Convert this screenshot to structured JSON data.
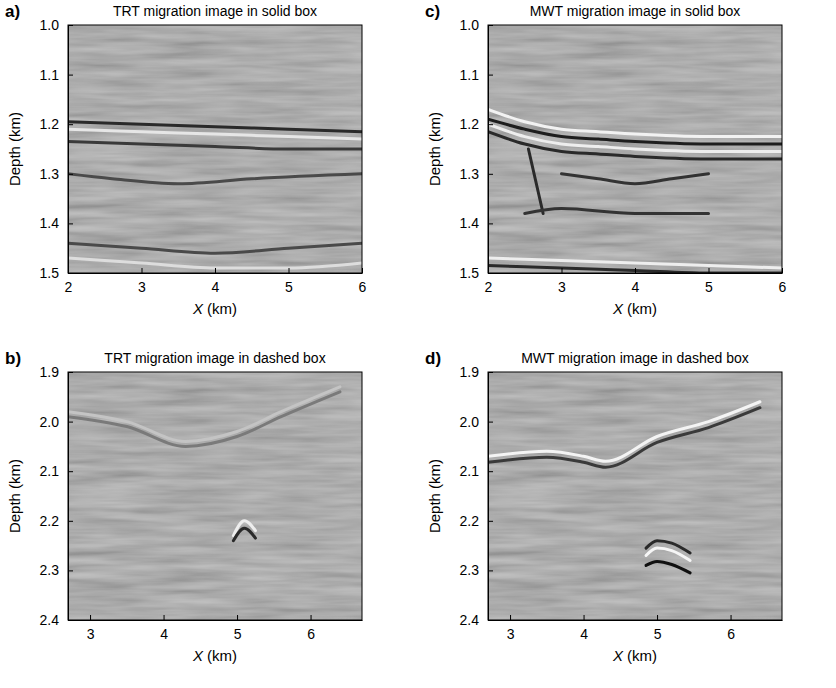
{
  "chart_data": [
    {
      "type": "line",
      "panel": "a)",
      "title": "TRT migration image in solid box",
      "x_label": "X (km)",
      "y_label": "Depth (km)",
      "xlim": [
        2,
        6
      ],
      "xticks": [
        2,
        3,
        4,
        5,
        6
      ],
      "ylim": [
        1.0,
        1.5
      ],
      "yticks": [
        {
          "value": 1.0,
          "label": "1.0"
        },
        1.1,
        1.2,
        1.3,
        1.4,
        1.5
      ],
      "grid": false,
      "series": [
        {
          "color": "#2a2a2a",
          "x": [
            2,
            3,
            4,
            5,
            6
          ],
          "values": [
            1.195,
            1.2,
            1.205,
            1.21,
            1.215
          ]
        },
        {
          "color": "#e6e6e6",
          "x": [
            2,
            3,
            4,
            5,
            6
          ],
          "values": [
            1.21,
            1.215,
            1.22,
            1.225,
            1.23
          ]
        },
        {
          "color": "#3a3a3a",
          "x": [
            2,
            3,
            4,
            5,
            6
          ],
          "values": [
            1.235,
            1.24,
            1.245,
            1.25,
            1.25
          ]
        },
        {
          "color": "#4a4a4a",
          "x": [
            2,
            2.6,
            3.5,
            4.5,
            6
          ],
          "values": [
            1.3,
            1.31,
            1.32,
            1.31,
            1.3
          ]
        },
        {
          "color": "#4a4a4a",
          "x": [
            2,
            3,
            4,
            5,
            6
          ],
          "values": [
            1.44,
            1.45,
            1.46,
            1.45,
            1.44
          ]
        },
        {
          "color": "#dddddd",
          "x": [
            2,
            3,
            4,
            5,
            6
          ],
          "values": [
            1.47,
            1.48,
            1.49,
            1.49,
            1.48
          ]
        }
      ]
    },
    {
      "type": "line",
      "panel": "b)",
      "title": "TRT migration image in dashed box",
      "x_label": "X (km)",
      "y_label": "Depth (km)",
      "xlim": [
        2.7,
        6.7
      ],
      "xticks": [
        3,
        4,
        5,
        6
      ],
      "ylim": [
        1.9,
        2.4
      ],
      "yticks": [
        1.9,
        {
          "value": 2.0,
          "label": "2.0"
        },
        2.1,
        2.2,
        2.3,
        2.4
      ],
      "grid": false,
      "series": [
        {
          "color": "#c4c4c4",
          "x": [
            2.7,
            3.5,
            4.3,
            5.0,
            5.6,
            6.4
          ],
          "values": [
            1.98,
            2.0,
            2.04,
            2.02,
            1.98,
            1.93
          ]
        },
        {
          "color": "#7a7a7a",
          "x": [
            2.7,
            3.5,
            4.3,
            5.0,
            5.6,
            6.4
          ],
          "values": [
            1.99,
            2.01,
            2.05,
            2.03,
            1.99,
            1.94
          ]
        },
        {
          "color": "#eeeeee",
          "x": [
            4.95,
            5.1,
            5.25
          ],
          "values": [
            2.23,
            2.2,
            2.22
          ]
        },
        {
          "color": "#2a2a2a",
          "x": [
            4.95,
            5.1,
            5.25
          ],
          "values": [
            2.24,
            2.215,
            2.235
          ]
        }
      ]
    },
    {
      "type": "line",
      "panel": "c)",
      "title": "MWT migration image in solid box",
      "x_label": "X (km)",
      "y_label": "Depth (km)",
      "xlim": [
        2,
        6
      ],
      "xticks": [
        2,
        3,
        4,
        5,
        6
      ],
      "ylim": [
        1.0,
        1.5
      ],
      "yticks": [
        {
          "value": 1.0,
          "label": "1.0"
        },
        1.1,
        1.2,
        1.3,
        1.4,
        1.5
      ],
      "grid": false,
      "series": [
        {
          "color": "#f2f2f2",
          "x": [
            2,
            2.5,
            3,
            3.5,
            4,
            5,
            6
          ],
          "values": [
            1.17,
            1.195,
            1.21,
            1.215,
            1.22,
            1.225,
            1.225
          ]
        },
        {
          "color": "#1e1e1e",
          "x": [
            2,
            2.5,
            3,
            3.5,
            4,
            5,
            6
          ],
          "values": [
            1.19,
            1.21,
            1.225,
            1.23,
            1.235,
            1.24,
            1.24
          ]
        },
        {
          "color": "#eeeeee",
          "x": [
            2,
            2.5,
            3,
            3.5,
            4,
            5,
            6
          ],
          "values": [
            1.2,
            1.225,
            1.24,
            1.245,
            1.25,
            1.255,
            1.255
          ]
        },
        {
          "color": "#2a2a2a",
          "x": [
            2,
            2.5,
            3,
            3.5,
            4,
            5,
            6
          ],
          "values": [
            1.215,
            1.24,
            1.255,
            1.26,
            1.265,
            1.27,
            1.27
          ]
        },
        {
          "color": "#2a2a2a",
          "x": [
            2.55,
            2.75
          ],
          "values": [
            1.25,
            1.38
          ]
        },
        {
          "color": "#333333",
          "x": [
            3,
            3.5,
            4,
            4.5,
            5
          ],
          "values": [
            1.3,
            1.31,
            1.32,
            1.31,
            1.3
          ]
        },
        {
          "color": "#333333",
          "x": [
            2.5,
            3,
            4,
            5
          ],
          "values": [
            1.38,
            1.37,
            1.38,
            1.38
          ]
        },
        {
          "color": "#eeeeee",
          "x": [
            2,
            3,
            4,
            5,
            6
          ],
          "values": [
            1.47,
            1.475,
            1.48,
            1.485,
            1.49
          ]
        },
        {
          "color": "#2a2a2a",
          "x": [
            2,
            3,
            4,
            5,
            6
          ],
          "values": [
            1.485,
            1.49,
            1.495,
            1.5,
            1.5
          ]
        }
      ]
    },
    {
      "type": "line",
      "panel": "d)",
      "title": "MWT migration image in dashed box",
      "x_label": "X (km)",
      "y_label": "Depth (km)",
      "xlim": [
        2.7,
        6.7
      ],
      "xticks": [
        3,
        4,
        5,
        6
      ],
      "ylim": [
        1.9,
        2.4
      ],
      "yticks": [
        1.9,
        {
          "value": 2.0,
          "label": "2.0"
        },
        2.1,
        2.2,
        2.3,
        2.4
      ],
      "grid": false,
      "series": [
        {
          "color": "#f4f4f4",
          "x": [
            2.7,
            3.5,
            4.0,
            4.3,
            5.0,
            5.7,
            6.4
          ],
          "values": [
            2.07,
            2.06,
            2.07,
            2.08,
            2.03,
            2.0,
            1.96
          ]
        },
        {
          "color": "#3a3a3a",
          "x": [
            2.7,
            3.5,
            4.0,
            4.3,
            5.0,
            5.7,
            6.4
          ],
          "values": [
            2.082,
            2.072,
            2.082,
            2.092,
            2.042,
            2.012,
            1.972
          ]
        },
        {
          "color": "#2a2a2a",
          "x": [
            4.85,
            5.0,
            5.2,
            5.45
          ],
          "values": [
            2.255,
            2.24,
            2.245,
            2.265
          ]
        },
        {
          "color": "#f6f6f6",
          "x": [
            4.85,
            5.0,
            5.2,
            5.45
          ],
          "values": [
            2.27,
            2.255,
            2.26,
            2.28
          ]
        },
        {
          "color": "#111111",
          "x": [
            4.85,
            5.0,
            5.2,
            5.45
          ],
          "values": [
            2.29,
            2.282,
            2.288,
            2.305
          ]
        }
      ]
    }
  ]
}
